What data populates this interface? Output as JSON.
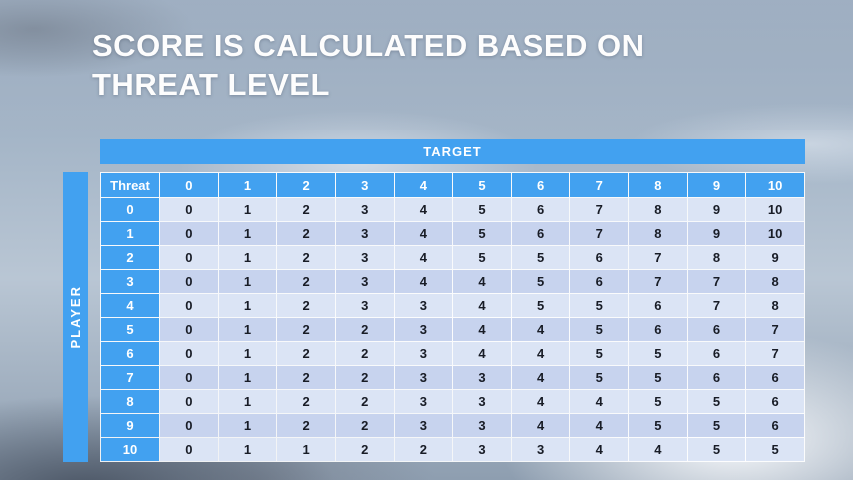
{
  "title": {
    "line1": "SCORE IS CALCULATED BASED ON",
    "line2": "THREAT LEVEL"
  },
  "target_label": "TARGET",
  "player_label": "PLAYER",
  "table": {
    "corner_label": "Threat",
    "col_headers": [
      "0",
      "1",
      "2",
      "3",
      "4",
      "5",
      "6",
      "7",
      "8",
      "9",
      "10"
    ],
    "rows": [
      {
        "threat": "0",
        "values": [
          "0",
          "1",
          "2",
          "3",
          "4",
          "5",
          "6",
          "7",
          "8",
          "9",
          "10"
        ]
      },
      {
        "threat": "1",
        "values": [
          "0",
          "1",
          "2",
          "3",
          "4",
          "5",
          "6",
          "7",
          "8",
          "9",
          "10"
        ]
      },
      {
        "threat": "2",
        "values": [
          "0",
          "1",
          "2",
          "3",
          "4",
          "5",
          "5",
          "6",
          "7",
          "8",
          "9"
        ]
      },
      {
        "threat": "3",
        "values": [
          "0",
          "1",
          "2",
          "3",
          "4",
          "4",
          "5",
          "6",
          "7",
          "7",
          "8"
        ]
      },
      {
        "threat": "4",
        "values": [
          "0",
          "1",
          "2",
          "3",
          "3",
          "4",
          "5",
          "5",
          "6",
          "7",
          "8"
        ]
      },
      {
        "threat": "5",
        "values": [
          "0",
          "1",
          "2",
          "2",
          "3",
          "4",
          "4",
          "5",
          "6",
          "6",
          "7"
        ]
      },
      {
        "threat": "6",
        "values": [
          "0",
          "1",
          "2",
          "2",
          "3",
          "4",
          "4",
          "5",
          "5",
          "6",
          "7"
        ]
      },
      {
        "threat": "7",
        "values": [
          "0",
          "1",
          "2",
          "2",
          "3",
          "3",
          "4",
          "5",
          "5",
          "6",
          "6"
        ]
      },
      {
        "threat": "8",
        "values": [
          "0",
          "1",
          "2",
          "2",
          "3",
          "3",
          "4",
          "4",
          "5",
          "5",
          "6"
        ]
      },
      {
        "threat": "9",
        "values": [
          "0",
          "1",
          "2",
          "2",
          "3",
          "3",
          "4",
          "4",
          "5",
          "5",
          "6"
        ]
      },
      {
        "threat": "10",
        "values": [
          "0",
          "1",
          "1",
          "2",
          "2",
          "3",
          "3",
          "4",
          "4",
          "5",
          "5"
        ]
      }
    ]
  },
  "colors": {
    "accent_blue": "#42a1f0",
    "row_light": "#dbe4f5",
    "row_dark": "#c7d3ee",
    "cell_text": "#181c26",
    "title_text": "#fdfdfd"
  }
}
